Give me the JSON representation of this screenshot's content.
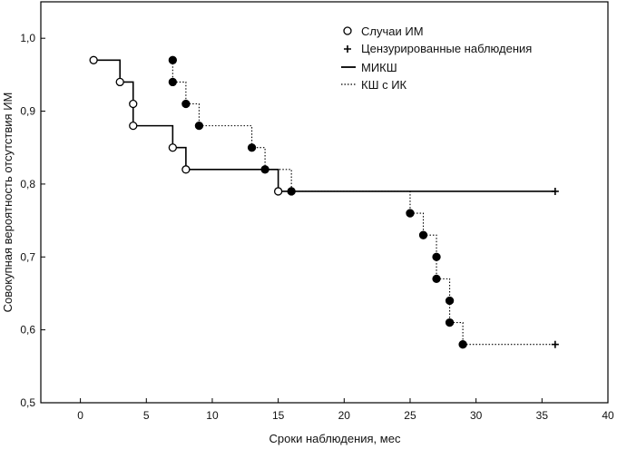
{
  "chart_data": {
    "type": "line",
    "title": "",
    "xlabel": "Сроки наблюдения, мес",
    "ylabel": "Совокупная вероятность отсутствия ИМ",
    "xlim": [
      -3,
      40
    ],
    "ylim": [
      0.5,
      1.05
    ],
    "x_ticks": [
      0,
      5,
      10,
      15,
      20,
      25,
      30,
      35,
      40
    ],
    "y_ticks": [
      0.5,
      0.6,
      0.7,
      0.8,
      0.9,
      1.0
    ],
    "x_tick_labels": [
      "0",
      "5",
      "10",
      "15",
      "20",
      "25",
      "30",
      "35",
      "40"
    ],
    "y_tick_labels": [
      "0,5",
      "0,6",
      "0,7",
      "0,8",
      "0,9",
      "1,0"
    ],
    "grid": false,
    "legend_position": "top-right",
    "legend": {
      "events_label": "Случаи ИМ",
      "censored_label": "Цензурированные наблюдения",
      "series_1_label": "МИКШ",
      "series_2_label": "КШ с ИК"
    },
    "series": [
      {
        "name": "МИКШ",
        "line_style": "solid",
        "marker": "open-circle",
        "color": "#000000",
        "steps": [
          [
            1,
            0.97
          ],
          [
            3,
            0.94
          ],
          [
            4,
            0.91
          ],
          [
            4,
            0.88
          ],
          [
            7,
            0.85
          ],
          [
            8,
            0.82
          ],
          [
            15,
            0.79
          ],
          [
            36,
            0.79
          ]
        ],
        "events": [
          [
            1,
            0.97
          ],
          [
            3,
            0.94
          ],
          [
            4,
            0.91
          ],
          [
            4,
            0.88
          ],
          [
            7,
            0.85
          ],
          [
            8,
            0.82
          ],
          [
            15,
            0.79
          ]
        ],
        "censored": [
          [
            36,
            0.79
          ]
        ]
      },
      {
        "name": "КШ с ИК",
        "line_style": "dotted",
        "marker": "filled-circle",
        "color": "#000000",
        "steps": [
          [
            7,
            0.97
          ],
          [
            7,
            0.94
          ],
          [
            8,
            0.91
          ],
          [
            9,
            0.88
          ],
          [
            13,
            0.85
          ],
          [
            14,
            0.82
          ],
          [
            16,
            0.79
          ],
          [
            25,
            0.76
          ],
          [
            26,
            0.73
          ],
          [
            27,
            0.7
          ],
          [
            27,
            0.67
          ],
          [
            28,
            0.64
          ],
          [
            28,
            0.61
          ],
          [
            29,
            0.58
          ],
          [
            36,
            0.58
          ]
        ],
        "events": [
          [
            7,
            0.97
          ],
          [
            7,
            0.94
          ],
          [
            8,
            0.91
          ],
          [
            9,
            0.88
          ],
          [
            13,
            0.85
          ],
          [
            14,
            0.82
          ],
          [
            16,
            0.79
          ],
          [
            25,
            0.76
          ],
          [
            26,
            0.73
          ],
          [
            27,
            0.7
          ],
          [
            27,
            0.67
          ],
          [
            28,
            0.64
          ],
          [
            28,
            0.61
          ],
          [
            29,
            0.58
          ]
        ],
        "censored": [
          [
            36,
            0.58
          ]
        ]
      }
    ]
  }
}
